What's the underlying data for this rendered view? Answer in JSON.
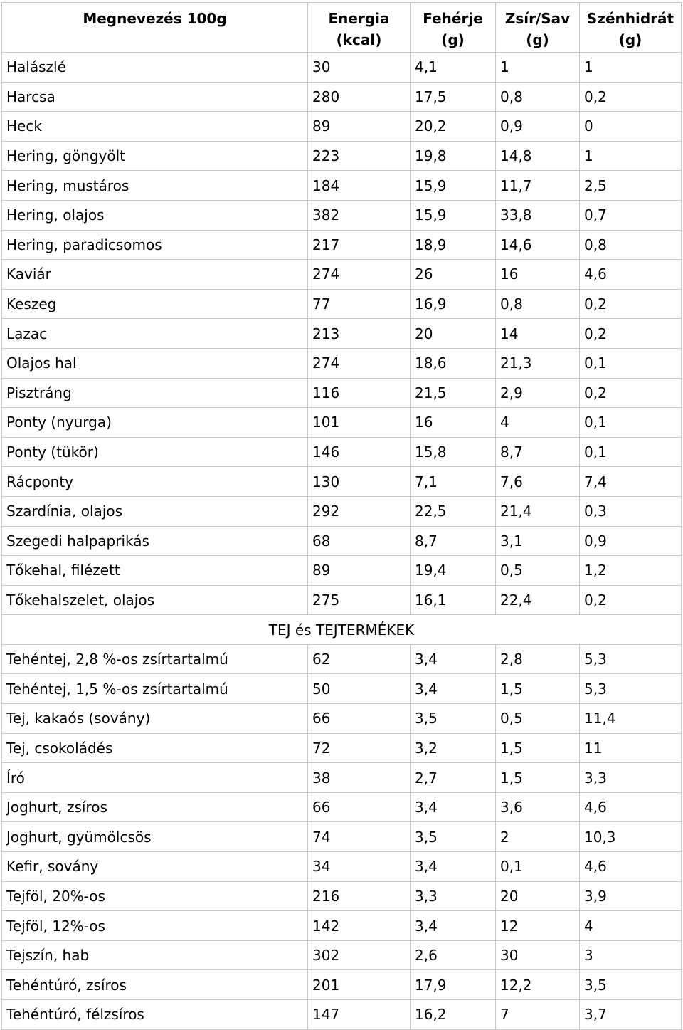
{
  "header": {
    "name": "Megnevezés 100g",
    "energy": "Energia",
    "energy_unit": "(kcal)",
    "protein": "Fehérje",
    "protein_unit": "(g)",
    "fat": "Zsír/Sav",
    "fat_unit": "(g)",
    "carb": "Szénhidrát",
    "carb_unit": "(g)"
  },
  "fish_rows": [
    [
      "Halászlé",
      "30",
      "4,1",
      "1",
      "1"
    ],
    [
      "Harcsa",
      "280",
      "17,5",
      "0,8",
      "0,2"
    ],
    [
      "Heck",
      "89",
      "20,2",
      "0,9",
      "0"
    ],
    [
      "Hering, göngyölt",
      "223",
      "19,8",
      "14,8",
      "1"
    ],
    [
      "Hering, mustáros",
      "184",
      "15,9",
      "11,7",
      "2,5"
    ],
    [
      "Hering, olajos",
      "382",
      "15,9",
      "33,8",
      "0,7"
    ],
    [
      "Hering, paradicsomos",
      "217",
      "18,9",
      "14,6",
      "0,8"
    ],
    [
      "Kaviár",
      "274",
      "26",
      "16",
      "4,6"
    ],
    [
      "Keszeg",
      "77",
      "16,9",
      "0,8",
      "0,2"
    ],
    [
      "Lazac",
      "213",
      "20",
      "14",
      "0,2"
    ],
    [
      "Olajos hal",
      "274",
      "18,6",
      "21,3",
      "0,1"
    ],
    [
      "Pisztráng",
      "116",
      "21,5",
      "2,9",
      "0,2"
    ],
    [
      "Ponty (nyurga)",
      "101",
      "16",
      "4",
      "0,1"
    ],
    [
      "Ponty (tükör)",
      "146",
      "15,8",
      "8,7",
      "0,1"
    ],
    [
      "Rácponty",
      "130",
      "7,1",
      "7,6",
      "7,4"
    ],
    [
      "Szardínia, olajos",
      "292",
      "22,5",
      "21,4",
      "0,3"
    ],
    [
      "Szegedi halpaprikás",
      "68",
      "8,7",
      "3,1",
      "0,9"
    ],
    [
      "Tőkehal, filézett",
      "89",
      "19,4",
      "0,5",
      "1,2"
    ],
    [
      "Tőkehalszelet, olajos",
      "275",
      "16,1",
      "22,4",
      "0,2"
    ]
  ],
  "section_title": "TEJ és TEJTERMÉKEK",
  "dairy_rows": [
    [
      "Tehéntej, 2,8 %-os zsírtartalmú",
      "62",
      "3,4",
      "2,8",
      "5,3"
    ],
    [
      "Tehéntej, 1,5 %-os zsírtartalmú",
      "50",
      "3,4",
      "1,5",
      "5,3"
    ],
    [
      "Tej, kakaós (sovány)",
      "66",
      "3,5",
      "0,5",
      "11,4"
    ],
    [
      "Tej, csokoládés",
      "72",
      "3,2",
      "1,5",
      "11"
    ],
    [
      "Író",
      "38",
      "2,7",
      "1,5",
      "3,3"
    ],
    [
      "Joghurt, zsíros",
      "66",
      "3,4",
      "3,6",
      "4,6"
    ],
    [
      "Joghurt, gyümölcsös",
      "74",
      "3,5",
      "2",
      "10,3"
    ],
    [
      "Kefir, sovány",
      "34",
      "3,4",
      "0,1",
      "4,6"
    ],
    [
      "Tejföl, 20%-os",
      "216",
      "3,3",
      "20",
      "3,9"
    ],
    [
      "Tejföl, 12%-os",
      "142",
      "3,4",
      "12",
      "4"
    ],
    [
      "Tejszín, hab",
      "302",
      "2,6",
      "30",
      "3"
    ],
    [
      "Tehéntúró, zsíros",
      "201",
      "17,9",
      "12,2",
      "3,5"
    ],
    [
      "Tehéntúró, félzsíros",
      "147",
      "16,2",
      "7",
      "3,7"
    ]
  ]
}
